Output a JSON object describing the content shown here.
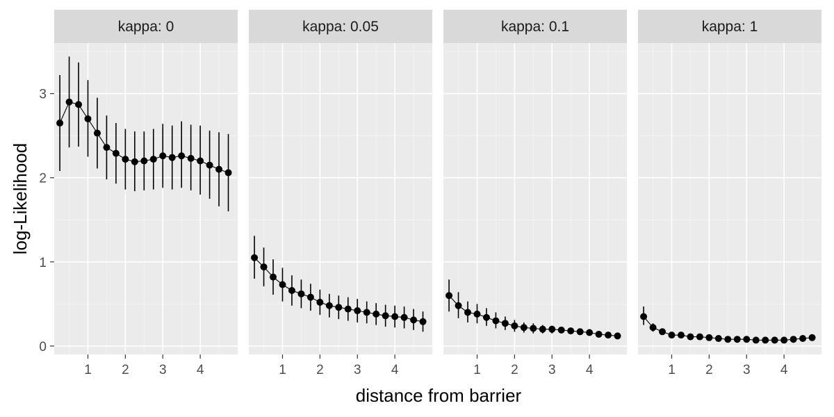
{
  "chart_data": {
    "type": "line",
    "facet_label_prefix": "kappa: ",
    "xlabel": "distance from barrier",
    "ylabel": "log-Likelihood",
    "xlim": [
      0.1,
      5.0
    ],
    "ylim": [
      -0.1,
      3.6
    ],
    "x_ticks": [
      1,
      2,
      3,
      4
    ],
    "y_ticks": [
      0,
      1,
      2,
      3
    ],
    "grid": true,
    "x": [
      0.25,
      0.5,
      0.75,
      1.0,
      1.25,
      1.5,
      1.75,
      2.0,
      2.25,
      2.5,
      2.75,
      3.0,
      3.25,
      3.5,
      3.75,
      4.0,
      4.25,
      4.5,
      4.75
    ],
    "panels": [
      {
        "kappa": "0",
        "strip": "kappa: 0",
        "y": [
          2.65,
          2.9,
          2.87,
          2.7,
          2.53,
          2.36,
          2.29,
          2.22,
          2.19,
          2.2,
          2.22,
          2.26,
          2.24,
          2.26,
          2.23,
          2.2,
          2.15,
          2.1,
          2.06
        ],
        "lower": [
          2.08,
          2.36,
          2.37,
          2.25,
          2.11,
          1.98,
          1.93,
          1.86,
          1.84,
          1.85,
          1.86,
          1.88,
          1.86,
          1.88,
          1.85,
          1.8,
          1.75,
          1.66,
          1.6
        ],
        "upper": [
          3.22,
          3.44,
          3.37,
          3.16,
          2.95,
          2.74,
          2.65,
          2.58,
          2.55,
          2.55,
          2.58,
          2.64,
          2.62,
          2.67,
          2.63,
          2.62,
          2.56,
          2.54,
          2.52
        ]
      },
      {
        "kappa": "0.05",
        "strip": "kappa: 0.05",
        "y": [
          1.05,
          0.94,
          0.82,
          0.73,
          0.66,
          0.62,
          0.58,
          0.52,
          0.48,
          0.46,
          0.44,
          0.42,
          0.4,
          0.38,
          0.36,
          0.35,
          0.34,
          0.31,
          0.29
        ],
        "lower": [
          0.8,
          0.71,
          0.61,
          0.53,
          0.48,
          0.45,
          0.42,
          0.37,
          0.34,
          0.32,
          0.3,
          0.28,
          0.27,
          0.25,
          0.23,
          0.22,
          0.21,
          0.19,
          0.17
        ],
        "upper": [
          1.31,
          1.17,
          1.03,
          0.93,
          0.84,
          0.79,
          0.74,
          0.67,
          0.62,
          0.6,
          0.58,
          0.56,
          0.53,
          0.51,
          0.49,
          0.48,
          0.47,
          0.44,
          0.41
        ]
      },
      {
        "kappa": "0.1",
        "strip": "kappa: 0.1",
        "y": [
          0.6,
          0.48,
          0.4,
          0.38,
          0.34,
          0.3,
          0.27,
          0.24,
          0.22,
          0.21,
          0.2,
          0.2,
          0.19,
          0.18,
          0.17,
          0.16,
          0.14,
          0.13,
          0.12
        ],
        "lower": [
          0.41,
          0.33,
          0.28,
          0.27,
          0.24,
          0.21,
          0.19,
          0.17,
          0.16,
          0.15,
          0.15,
          0.15,
          0.15,
          0.14,
          0.14,
          0.13,
          0.11,
          0.1,
          0.1
        ],
        "upper": [
          0.79,
          0.64,
          0.53,
          0.5,
          0.45,
          0.4,
          0.35,
          0.31,
          0.28,
          0.27,
          0.25,
          0.24,
          0.23,
          0.22,
          0.21,
          0.2,
          0.17,
          0.15,
          0.14
        ]
      },
      {
        "kappa": "1",
        "strip": "kappa: 1",
        "y": [
          0.35,
          0.22,
          0.17,
          0.13,
          0.13,
          0.11,
          0.11,
          0.1,
          0.09,
          0.08,
          0.08,
          0.08,
          0.07,
          0.07,
          0.07,
          0.07,
          0.08,
          0.09,
          0.1
        ],
        "lower": [
          0.25,
          0.17,
          0.14,
          0.11,
          0.11,
          0.09,
          0.09,
          0.08,
          0.08,
          0.07,
          0.07,
          0.07,
          0.06,
          0.06,
          0.06,
          0.06,
          0.07,
          0.08,
          0.09
        ],
        "upper": [
          0.47,
          0.27,
          0.2,
          0.15,
          0.15,
          0.13,
          0.13,
          0.12,
          0.1,
          0.09,
          0.09,
          0.09,
          0.08,
          0.08,
          0.08,
          0.08,
          0.09,
          0.1,
          0.11
        ]
      }
    ]
  }
}
